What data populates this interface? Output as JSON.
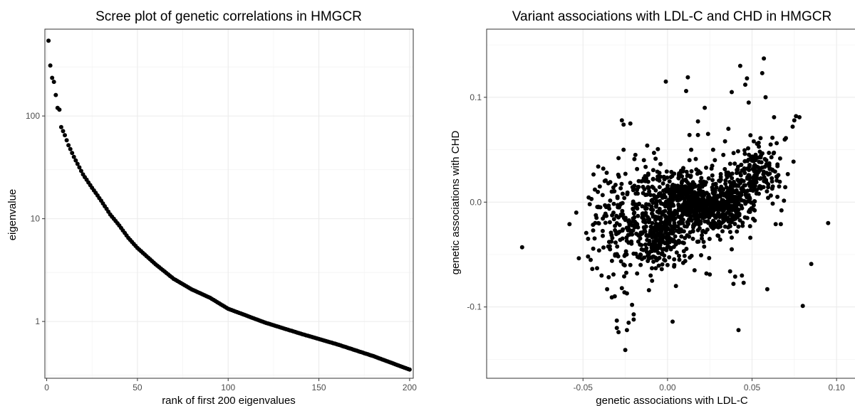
{
  "chart_data": [
    {
      "type": "scatter",
      "title": "Scree plot of genetic correlations in HMGCR",
      "xlabel": "rank of first 200 eigenvalues",
      "ylabel": "eigenvalue",
      "xlim": [
        -1,
        202
      ],
      "ylim": [
        0.28,
        700
      ],
      "yscale": "log",
      "grid": true,
      "x_ticks": [
        {
          "value": 0,
          "label": "0"
        },
        {
          "value": 50,
          "label": "50"
        },
        {
          "value": 100,
          "label": "100"
        },
        {
          "value": 150,
          "label": "150"
        },
        {
          "value": 200,
          "label": "200"
        }
      ],
      "y_ticks": [
        {
          "value": 1,
          "label": "1"
        },
        {
          "value": 10,
          "label": "10"
        },
        {
          "value": 100,
          "label": "100"
        }
      ],
      "point_color": "#000000",
      "curve_knots": [
        [
          1,
          540
        ],
        [
          2,
          310
        ],
        [
          3,
          235
        ],
        [
          4,
          215
        ],
        [
          5,
          160
        ],
        [
          6,
          120
        ],
        [
          7,
          115
        ],
        [
          8,
          78
        ],
        [
          10,
          65
        ],
        [
          12,
          52
        ],
        [
          15,
          40
        ],
        [
          20,
          27
        ],
        [
          25,
          20
        ],
        [
          30,
          15
        ],
        [
          35,
          11
        ],
        [
          40,
          8.6
        ],
        [
          45,
          6.5
        ],
        [
          50,
          5.2
        ],
        [
          60,
          3.6
        ],
        [
          70,
          2.6
        ],
        [
          80,
          2.05
        ],
        [
          90,
          1.7
        ],
        [
          100,
          1.33
        ],
        [
          120,
          0.98
        ],
        [
          140,
          0.76
        ],
        [
          160,
          0.6
        ],
        [
          180,
          0.46
        ],
        [
          200,
          0.34
        ]
      ]
    },
    {
      "type": "scatter",
      "title": "Variant associations with LDL-C and CHD in HMGCR",
      "xlabel": "genetic associations with LDL-C",
      "ylabel": "genetic associations with CHD",
      "xlim": [
        -0.107,
        0.113
      ],
      "ylim": [
        -0.168,
        0.165
      ],
      "grid": true,
      "x_ticks": [
        {
          "value": -0.05,
          "label": "-0.05"
        },
        {
          "value": 0,
          "label": "0.00"
        },
        {
          "value": 0.05,
          "label": "0.05"
        },
        {
          "value": 0.1,
          "label": "0.10"
        }
      ],
      "y_ticks": [
        {
          "value": -0.1,
          "label": "-0.1"
        },
        {
          "value": 0,
          "label": "0.0"
        },
        {
          "value": 0.1,
          "label": "0.1"
        }
      ],
      "point_color": "#000000",
      "points": [
        [
          -0.086,
          -0.043
        ],
        [
          -0.058,
          -0.021
        ],
        [
          -0.054,
          -0.01
        ],
        [
          -0.047,
          -0.035
        ],
        [
          -0.046,
          -0.002
        ],
        [
          -0.045,
          0.003
        ],
        [
          -0.044,
          -0.027
        ],
        [
          -0.043,
          0.012
        ],
        [
          -0.042,
          -0.015
        ],
        [
          -0.041,
          0.034
        ],
        [
          -0.039,
          -0.07
        ],
        [
          -0.038,
          0.032
        ],
        [
          -0.037,
          -0.003
        ],
        [
          -0.036,
          0.028
        ],
        [
          -0.035,
          0.018
        ],
        [
          -0.034,
          -0.045
        ],
        [
          -0.033,
          0.01
        ],
        [
          -0.032,
          -0.069
        ],
        [
          -0.031,
          -0.051
        ],
        [
          -0.03,
          -0.113
        ],
        [
          -0.03,
          -0.12
        ],
        [
          -0.029,
          -0.124
        ],
        [
          -0.029,
          0.042
        ],
        [
          -0.028,
          -0.036
        ],
        [
          -0.027,
          -0.082
        ],
        [
          -0.027,
          0.078
        ],
        [
          -0.026,
          0.074
        ],
        [
          -0.026,
          0.05
        ],
        [
          -0.025,
          -0.141
        ],
        [
          -0.025,
          -0.05
        ],
        [
          -0.024,
          -0.122
        ],
        [
          -0.024,
          -0.087
        ],
        [
          -0.023,
          -0.115
        ],
        [
          -0.022,
          0.075
        ],
        [
          -0.022,
          -0.06
        ],
        [
          -0.021,
          -0.098
        ],
        [
          -0.02,
          -0.107
        ],
        [
          -0.02,
          -0.112
        ],
        [
          -0.019,
          0.045
        ],
        [
          -0.018,
          -0.068
        ],
        [
          -0.017,
          0.02
        ],
        [
          -0.016,
          -0.05
        ],
        [
          -0.015,
          -0.029
        ],
        [
          -0.014,
          0.04
        ],
        [
          -0.013,
          0.02
        ],
        [
          -0.012,
          0.054
        ],
        [
          -0.011,
          -0.084
        ],
        [
          -0.011,
          -0.04
        ],
        [
          -0.01,
          -0.07
        ],
        [
          -0.009,
          -0.02
        ],
        [
          -0.008,
          0.047
        ],
        [
          -0.007,
          -0.063
        ],
        [
          -0.006,
          0.029
        ],
        [
          -0.005,
          -0.01
        ],
        [
          -0.004,
          0.006
        ],
        [
          -0.003,
          -0.038
        ],
        [
          -0.002,
          -0.055
        ],
        [
          -0.001,
          0.115
        ],
        [
          0.0,
          -0.06
        ],
        [
          0.001,
          -0.03
        ],
        [
          0.002,
          -0.045
        ],
        [
          0.003,
          -0.114
        ],
        [
          0.004,
          -0.06
        ],
        [
          0.005,
          -0.08
        ],
        [
          0.006,
          0.006
        ],
        [
          0.007,
          -0.055
        ],
        [
          0.008,
          0.03
        ],
        [
          0.009,
          -0.02
        ],
        [
          0.01,
          0.003
        ],
        [
          0.011,
          0.106
        ],
        [
          0.012,
          0.119
        ],
        [
          0.013,
          0.064
        ],
        [
          0.013,
          0.04
        ],
        [
          0.014,
          0.05
        ],
        [
          0.015,
          -0.035
        ],
        [
          0.016,
          -0.065
        ],
        [
          0.017,
          0.005
        ],
        [
          0.018,
          0.077
        ],
        [
          0.018,
          0.064
        ],
        [
          0.019,
          -0.012
        ],
        [
          0.02,
          0.023
        ],
        [
          0.021,
          0.004
        ],
        [
          0.022,
          0.09
        ],
        [
          0.023,
          -0.068
        ],
        [
          0.024,
          0.065
        ],
        [
          0.025,
          -0.069
        ],
        [
          0.026,
          0.032
        ],
        [
          0.027,
          0.05
        ],
        [
          0.028,
          0.04
        ],
        [
          0.029,
          0.014
        ],
        [
          0.03,
          -0.01
        ],
        [
          0.031,
          0.02
        ],
        [
          0.032,
          -0.02
        ],
        [
          0.033,
          0.045
        ],
        [
          0.034,
          0.058
        ],
        [
          0.035,
          0.005
        ],
        [
          0.036,
          0.07
        ],
        [
          0.037,
          -0.066
        ],
        [
          0.038,
          -0.045
        ],
        [
          0.038,
          0.105
        ],
        [
          0.039,
          -0.078
        ],
        [
          0.04,
          -0.071
        ],
        [
          0.041,
          -0.028
        ],
        [
          0.042,
          -0.122
        ],
        [
          0.043,
          0.13
        ],
        [
          0.044,
          -0.07
        ],
        [
          0.045,
          -0.077
        ],
        [
          0.046,
          0.112
        ],
        [
          0.047,
          0.118
        ],
        [
          0.048,
          0.095
        ],
        [
          0.049,
          -0.034
        ],
        [
          0.05,
          0.015
        ],
        [
          0.051,
          0.058
        ],
        [
          0.052,
          0.03
        ],
        [
          0.053,
          0.027
        ],
        [
          0.054,
          0.008
        ],
        [
          0.055,
          0.061
        ],
        [
          0.056,
          0.123
        ],
        [
          0.057,
          0.137
        ],
        [
          0.058,
          0.1
        ],
        [
          0.059,
          -0.083
        ],
        [
          0.06,
          0.047
        ],
        [
          0.061,
          0.055
        ],
        [
          0.062,
          0.031
        ],
        [
          0.063,
          0.081
        ],
        [
          0.064,
          -0.021
        ],
        [
          0.065,
          0.005
        ],
        [
          0.066,
          0.015
        ],
        [
          0.067,
          -0.021
        ],
        [
          0.07,
          0.061
        ],
        [
          0.074,
          0.072
        ],
        [
          0.075,
          0.078
        ],
        [
          0.076,
          0.082
        ],
        [
          0.078,
          0.081
        ],
        [
          0.08,
          -0.099
        ],
        [
          0.085,
          -0.059
        ],
        [
          0.095,
          -0.02
        ]
      ],
      "clusters": [
        {
          "x": -0.025,
          "y": -0.02,
          "sx": 0.011,
          "sy": 0.025,
          "n": 220
        },
        {
          "x": -0.002,
          "y": -0.03,
          "sx": 0.007,
          "sy": 0.015,
          "n": 240
        },
        {
          "x": 0.012,
          "y": 0.002,
          "sx": 0.009,
          "sy": 0.013,
          "n": 260
        },
        {
          "x": 0.026,
          "y": -0.008,
          "sx": 0.009,
          "sy": 0.014,
          "n": 260
        },
        {
          "x": 0.038,
          "y": 0.002,
          "sx": 0.006,
          "sy": 0.012,
          "n": 200
        },
        {
          "x": 0.053,
          "y": 0.028,
          "sx": 0.008,
          "sy": 0.013,
          "n": 160
        },
        {
          "x": -0.005,
          "y": 0.01,
          "sx": 0.01,
          "sy": 0.018,
          "n": 90
        }
      ]
    }
  ]
}
